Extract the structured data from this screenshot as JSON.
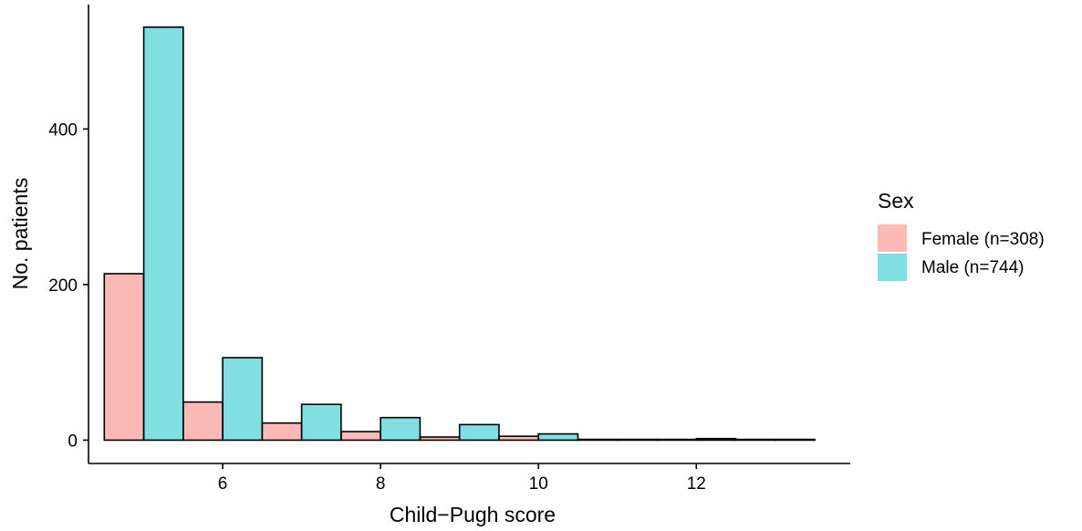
{
  "chart_data": {
    "type": "bar",
    "title": "",
    "xlabel": "Child−Pugh score",
    "ylabel": "No. patients",
    "x": [
      5,
      6,
      7,
      8,
      9,
      10,
      11,
      12,
      13
    ],
    "x_ticks": [
      6,
      8,
      10,
      12
    ],
    "x_tick_labels": [
      "6",
      "8",
      "10",
      "12"
    ],
    "xlim": [
      4.3,
      13.95
    ],
    "y_ticks": [
      0,
      200,
      400
    ],
    "y_tick_labels": [
      "0",
      "200",
      "400"
    ],
    "ylim": [
      -30,
      560
    ],
    "grid": false,
    "legend_position": "right",
    "legend_title": "Sex",
    "series": [
      {
        "name": "Female (n=308)",
        "color": "#F8766D",
        "values": [
          214,
          49,
          22,
          11,
          4,
          5,
          1,
          1,
          1
        ]
      },
      {
        "name": "Male (n=744)",
        "color": "#00BFC4",
        "values": [
          531,
          106,
          46,
          29,
          20,
          8,
          1,
          2,
          1
        ]
      }
    ]
  }
}
